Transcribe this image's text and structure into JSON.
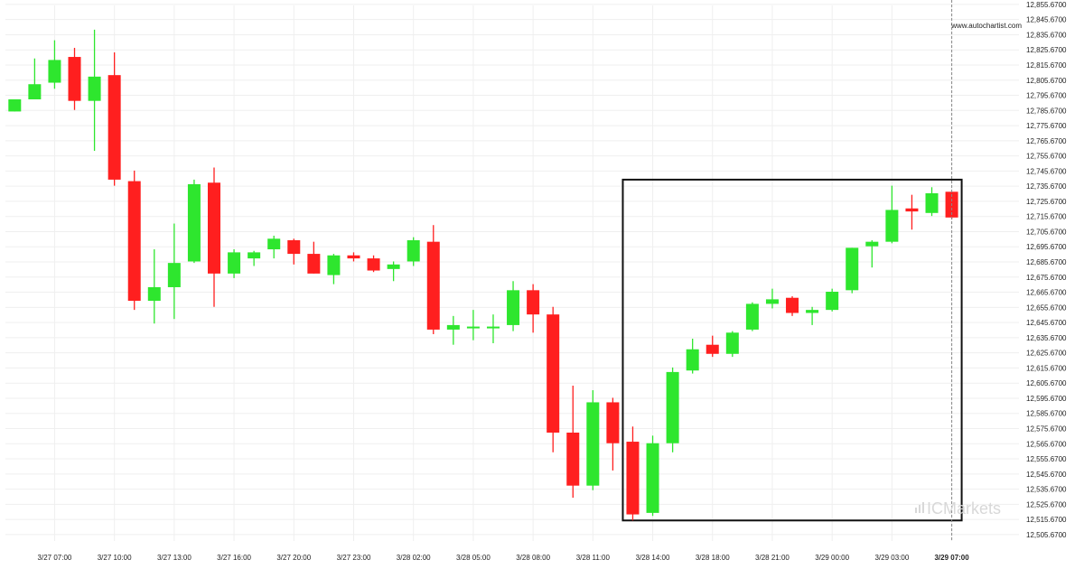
{
  "watermark": "www.autochartist.com",
  "brand": {
    "prefix": "IC",
    "suffix": "Markets"
  },
  "colors": {
    "bull": "#2ee62e",
    "bear": "#ff1f1f",
    "grid": "#efefef",
    "box": "#111111",
    "marker": "#888888"
  },
  "chart_data": {
    "type": "candlestick",
    "ylim": [
      12500.67,
      12855.67
    ],
    "yticks": [
      12505.67,
      12515.67,
      12525.67,
      12535.67,
      12545.67,
      12555.67,
      12565.67,
      12575.67,
      12585.67,
      12595.67,
      12605.67,
      12615.67,
      12625.67,
      12635.67,
      12645.67,
      12655.67,
      12665.67,
      12675.67,
      12685.67,
      12695.67,
      12705.67,
      12715.67,
      12725.67,
      12735.67,
      12745.67,
      12755.67,
      12765.67,
      12775.67,
      12785.67,
      12795.67,
      12805.67,
      12815.67,
      12825.67,
      12835.67,
      12845.67,
      12855.67
    ],
    "ytick_labels": [
      "12,505.6700",
      "12,515.6700",
      "12,525.6700",
      "12,535.6700",
      "12,545.6700",
      "12,555.6700",
      "12,565.6700",
      "12,575.6700",
      "12,585.6700",
      "12,595.6700",
      "12,605.6700",
      "12,615.6700",
      "12,625.6700",
      "12,635.6700",
      "12,645.6700",
      "12,655.6700",
      "12,665.6700",
      "12,675.6700",
      "12,685.6700",
      "12,695.6700",
      "12,705.6700",
      "12,715.6700",
      "12,725.6700",
      "12,735.6700",
      "12,745.6700",
      "12,755.6700",
      "12,765.6700",
      "12,775.6700",
      "12,785.6700",
      "12,795.6700",
      "12,805.6700",
      "12,815.6700",
      "12,825.6700",
      "12,835.6700",
      "12,845.6700",
      "12,855.6700"
    ],
    "xtick_labels": [
      {
        "index": 2,
        "label": "3/27 07:00"
      },
      {
        "index": 5,
        "label": "3/27 10:00"
      },
      {
        "index": 8,
        "label": "3/27 13:00"
      },
      {
        "index": 11,
        "label": "3/27 16:00"
      },
      {
        "index": 14,
        "label": "3/27 20:00"
      },
      {
        "index": 17,
        "label": "3/27 23:00"
      },
      {
        "index": 20,
        "label": "3/28 02:00"
      },
      {
        "index": 23,
        "label": "3/28 05:00"
      },
      {
        "index": 26,
        "label": "3/28 08:00"
      },
      {
        "index": 29,
        "label": "3/28 11:00"
      },
      {
        "index": 32,
        "label": "3/28 14:00"
      },
      {
        "index": 35,
        "label": "3/28 18:00"
      },
      {
        "index": 38,
        "label": "3/28 21:00"
      },
      {
        "index": 41,
        "label": "3/29 00:00"
      },
      {
        "index": 44,
        "label": "3/29 03:00"
      },
      {
        "index": 47,
        "label": "3/29 07:00",
        "bold": true
      }
    ],
    "candles": [
      {
        "o": 12785.0,
        "h": 12793.0,
        "l": 12785.0,
        "c": 12793.0
      },
      {
        "o": 12793.0,
        "h": 12820.0,
        "l": 12793.0,
        "c": 12803.0
      },
      {
        "o": 12804.0,
        "h": 12832.0,
        "l": 12800.0,
        "c": 12819.0
      },
      {
        "o": 12821.0,
        "h": 12827.0,
        "l": 12786.0,
        "c": 12792.0
      },
      {
        "o": 12792.0,
        "h": 12839.0,
        "l": 12759.0,
        "c": 12808.0
      },
      {
        "o": 12809.0,
        "h": 12824.0,
        "l": 12736.0,
        "c": 12740.0
      },
      {
        "o": 12739.0,
        "h": 12746.0,
        "l": 12654.0,
        "c": 12660.0
      },
      {
        "o": 12660.0,
        "h": 12694.0,
        "l": 12645.0,
        "c": 12669.0
      },
      {
        "o": 12669.0,
        "h": 12711.0,
        "l": 12648.0,
        "c": 12685.0
      },
      {
        "o": 12686.0,
        "h": 12740.0,
        "l": 12685.0,
        "c": 12737.0
      },
      {
        "o": 12738.0,
        "h": 12748.0,
        "l": 12656.0,
        "c": 12678.0
      },
      {
        "o": 12678.0,
        "h": 12694.0,
        "l": 12675.0,
        "c": 12692.0
      },
      {
        "o": 12688.0,
        "h": 12693.0,
        "l": 12683.0,
        "c": 12692.0
      },
      {
        "o": 12694.0,
        "h": 12703.0,
        "l": 12688.0,
        "c": 12701.0
      },
      {
        "o": 12700.0,
        "h": 12701.0,
        "l": 12684.0,
        "c": 12691.0
      },
      {
        "o": 12691.0,
        "h": 12699.0,
        "l": 12678.0,
        "c": 12678.0
      },
      {
        "o": 12677.0,
        "h": 12691.0,
        "l": 12671.0,
        "c": 12690.0
      },
      {
        "o": 12690.0,
        "h": 12692.0,
        "l": 12686.0,
        "c": 12688.0
      },
      {
        "o": 12688.0,
        "h": 12690.0,
        "l": 12679.0,
        "c": 12680.0
      },
      {
        "o": 12681.0,
        "h": 12686.0,
        "l": 12673.0,
        "c": 12684.0
      },
      {
        "o": 12686.0,
        "h": 12702.0,
        "l": 12683.0,
        "c": 12700.0
      },
      {
        "o": 12699.0,
        "h": 12710.0,
        "l": 12638.0,
        "c": 12641.0
      },
      {
        "o": 12641.0,
        "h": 12650.0,
        "l": 12631.0,
        "c": 12644.0
      },
      {
        "o": 12643.0,
        "h": 12654.0,
        "l": 12634.0,
        "c": 12643.0
      },
      {
        "o": 12643.0,
        "h": 12651.0,
        "l": 12632.0,
        "c": 12643.0
      },
      {
        "o": 12644.0,
        "h": 12673.0,
        "l": 12640.0,
        "c": 12667.0
      },
      {
        "o": 12667.0,
        "h": 12671.0,
        "l": 12639.0,
        "c": 12651.0
      },
      {
        "o": 12651.0,
        "h": 12656.0,
        "l": 12560.0,
        "c": 12573.0
      },
      {
        "o": 12573.0,
        "h": 12604.0,
        "l": 12530.0,
        "c": 12538.0
      },
      {
        "o": 12538.0,
        "h": 12601.0,
        "l": 12535.0,
        "c": 12593.0
      },
      {
        "o": 12593.0,
        "h": 12596.0,
        "l": 12548.0,
        "c": 12566.0
      },
      {
        "o": 12567.0,
        "h": 12577.0,
        "l": 12515.0,
        "c": 12519.0
      },
      {
        "o": 12520.0,
        "h": 12571.0,
        "l": 12518.0,
        "c": 12566.0
      },
      {
        "o": 12566.0,
        "h": 12616.0,
        "l": 12560.0,
        "c": 12613.0
      },
      {
        "o": 12614.0,
        "h": 12635.0,
        "l": 12612.0,
        "c": 12628.0
      },
      {
        "o": 12631.0,
        "h": 12637.0,
        "l": 12623.0,
        "c": 12625.0
      },
      {
        "o": 12625.0,
        "h": 12640.0,
        "l": 12623.0,
        "c": 12639.0
      },
      {
        "o": 12641.0,
        "h": 12659.0,
        "l": 12640.0,
        "c": 12658.0
      },
      {
        "o": 12658.0,
        "h": 12668.0,
        "l": 12655.0,
        "c": 12661.0
      },
      {
        "o": 12662.0,
        "h": 12663.0,
        "l": 12650.0,
        "c": 12652.0
      },
      {
        "o": 12652.0,
        "h": 12656.0,
        "l": 12644.0,
        "c": 12654.0
      },
      {
        "o": 12654.0,
        "h": 12668.0,
        "l": 12653.0,
        "c": 12666.0
      },
      {
        "o": 12667.0,
        "h": 12695.0,
        "l": 12665.0,
        "c": 12695.0
      },
      {
        "o": 12696.0,
        "h": 12700.0,
        "l": 12682.0,
        "c": 12699.0
      },
      {
        "o": 12699.0,
        "h": 12736.0,
        "l": 12698.0,
        "c": 12720.0
      },
      {
        "o": 12721.0,
        "h": 12730.0,
        "l": 12707.0,
        "c": 12719.0
      },
      {
        "o": 12718.0,
        "h": 12735.0,
        "l": 12716.0,
        "c": 12731.0
      },
      {
        "o": 12732.0,
        "h": 12732.0,
        "l": 12714.0,
        "c": 12715.0
      }
    ],
    "pattern_box": {
      "start_index": 31,
      "end_index": 47,
      "top": 12740.0,
      "bottom": 12515.0
    },
    "current_marker_index": 47
  }
}
